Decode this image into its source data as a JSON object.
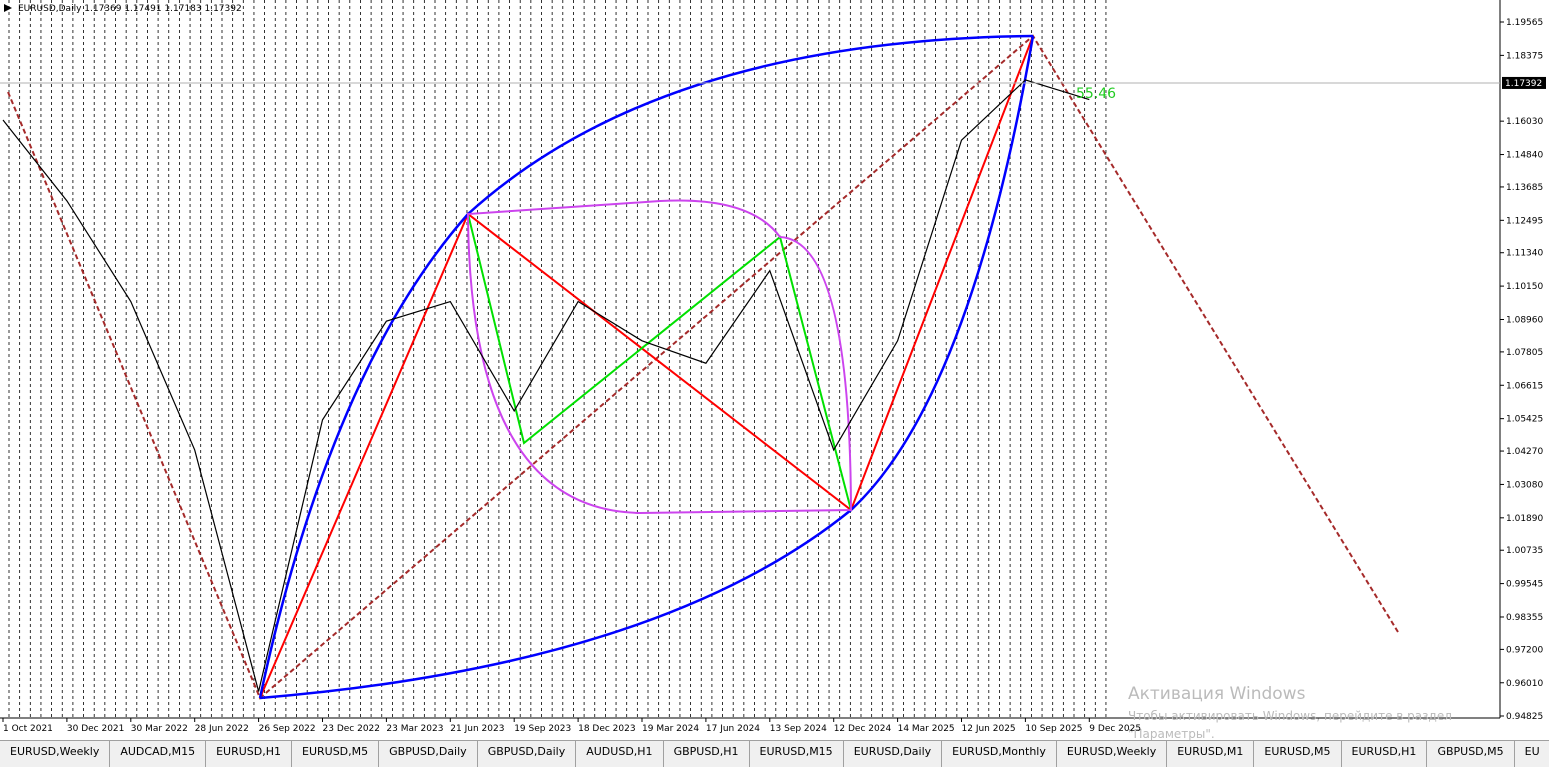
{
  "chart_data": {
    "type": "line",
    "title": "EURUSD,Daily  1.17369 1.17491 1.17183 1.17392",
    "categories": [
      "1 Oct 2021",
      "30 Dec 2021",
      "30 Mar 2022",
      "28 Jun 2022",
      "26 Sep 2022",
      "23 Dec 2022",
      "23 Mar 2023",
      "21 Jun 2023",
      "19 Sep 2023",
      "18 Dec 2023",
      "19 Mar 2024",
      "17 Jun 2024",
      "13 Sep 2024",
      "12 Dec 2024",
      "14 Mar 2025",
      "12 Jun 2025",
      "10 Sep 2025",
      "9 Dec 2025"
    ],
    "series": [
      {
        "name": "EURUSD",
        "color": "#000000",
        "values": [
          1.1607,
          1.1319,
          1.096,
          1.0431,
          0.957,
          1.0538,
          1.089,
          1.096,
          1.057,
          1.096,
          1.082,
          1.074,
          1.107,
          1.0431,
          1.082,
          1.1535,
          1.175,
          1.168
        ]
      }
    ],
    "ylim": [
      0.94754,
      1.20349
    ],
    "yticks": [
      1.19565,
      1.18375,
      {
        "value": 1.1603,
        "label": "1.16030"
      },
      {
        "value": 1.1484,
        "label": "1.14840"
      },
      1.13685,
      1.12495,
      {
        "value": 1.1134,
        "label": "1.11340"
      },
      {
        "value": 1.1015,
        "label": "1.10150"
      },
      {
        "value": 1.0896,
        "label": "1.08960"
      },
      1.07805,
      1.06615,
      1.05425,
      {
        "value": 1.0427,
        "label": "1.04270"
      },
      {
        "value": 1.0308,
        "label": "1.03080"
      },
      {
        "value": 1.0189,
        "label": "1.01890"
      },
      1.00735,
      0.99545,
      0.98355,
      {
        "value": 0.972,
        "label": "0.97200"
      },
      {
        "value": 0.9601,
        "label": "0.96010"
      },
      0.94825
    ],
    "current_price": 1.17392,
    "annotation": "55.46"
  },
  "tabs": [
    "EURUSD,Weekly",
    "AUDCAD,M15",
    "EURUSD,H1",
    "EURUSD,M5",
    "GBPUSD,Daily",
    "GBPUSD,Daily",
    "AUDUSD,H1",
    "GBPUSD,H1",
    "EURUSD,M15",
    "EURUSD,Daily",
    "EURUSD,Monthly",
    "EURUSD,Weekly",
    "EURUSD,M1",
    "EURUSD,M5",
    "EURUSD,H1",
    "GBPUSD,M5",
    "EU"
  ],
  "watermark": {
    "title": "Активация Windows",
    "line1": "Чтобы активировать Windows, перейдите в раздел",
    "line2": "\"Параметры\"."
  }
}
